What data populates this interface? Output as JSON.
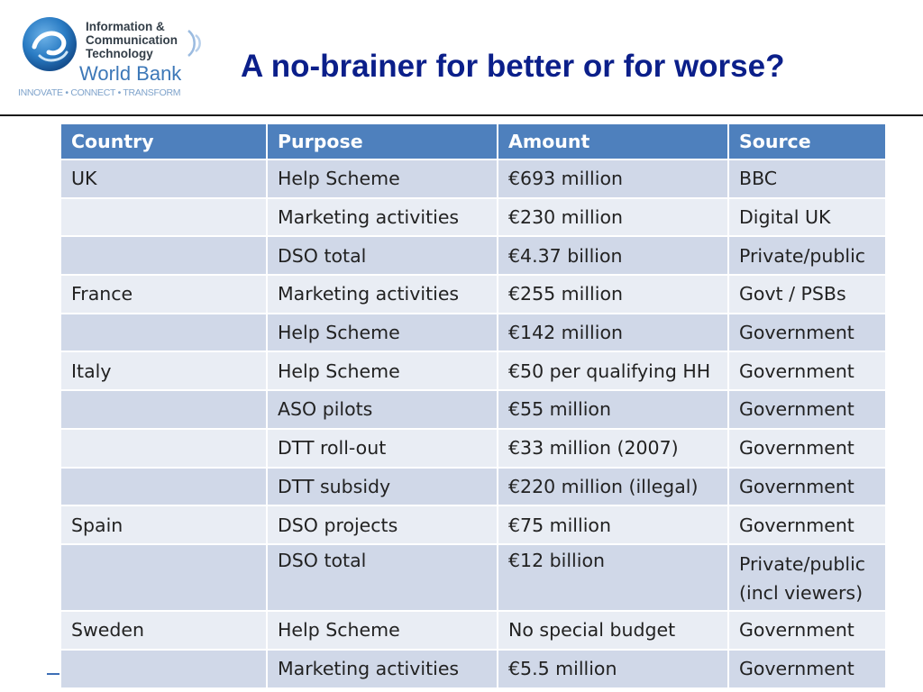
{
  "logo": {
    "line1": "Information &",
    "line2": "Communication",
    "line3": "Technology",
    "org": "World Bank",
    "tagline": "INNOVATE • CONNECT • TRANSFORM"
  },
  "title": "A no-brainer for better or for worse?",
  "colors": {
    "title": "#0b1f8a",
    "header_bg": "#4e80bd",
    "row_odd": "#d0d8e8",
    "row_even": "#e9edf4",
    "logo_blue": "#3d78b8"
  },
  "table": {
    "headers": [
      "Country",
      "Purpose",
      "Amount",
      "Source"
    ],
    "rows": [
      [
        "UK",
        "Help Scheme",
        "€693 million",
        "BBC"
      ],
      [
        "",
        "Marketing activities",
        "€230 million",
        "Digital UK"
      ],
      [
        "",
        "DSO total",
        "€4.37 billion",
        "Private/public"
      ],
      [
        "France",
        "Marketing activities",
        "€255 million",
        "Govt / PSBs"
      ],
      [
        "",
        "Help Scheme",
        "€142 million",
        "Government"
      ],
      [
        "Italy",
        "Help Scheme",
        "€50 per qualifying HH",
        "Government"
      ],
      [
        "",
        "ASO pilots",
        "€55 million",
        "Government"
      ],
      [
        "",
        "DTT roll-out",
        "€33 million (2007)",
        "Government"
      ],
      [
        "",
        "DTT subsidy",
        "€220 million (illegal)",
        "Government"
      ],
      [
        "Spain",
        "DSO projects",
        "€75 million",
        "Government"
      ],
      [
        "",
        "DSO total",
        "€12 billion",
        "Private/public (incl viewers)"
      ],
      [
        "Sweden",
        "Help Scheme",
        "No special budget",
        "Government"
      ],
      [
        "",
        "Marketing activities",
        "€5.5 million",
        "Government"
      ]
    ]
  }
}
